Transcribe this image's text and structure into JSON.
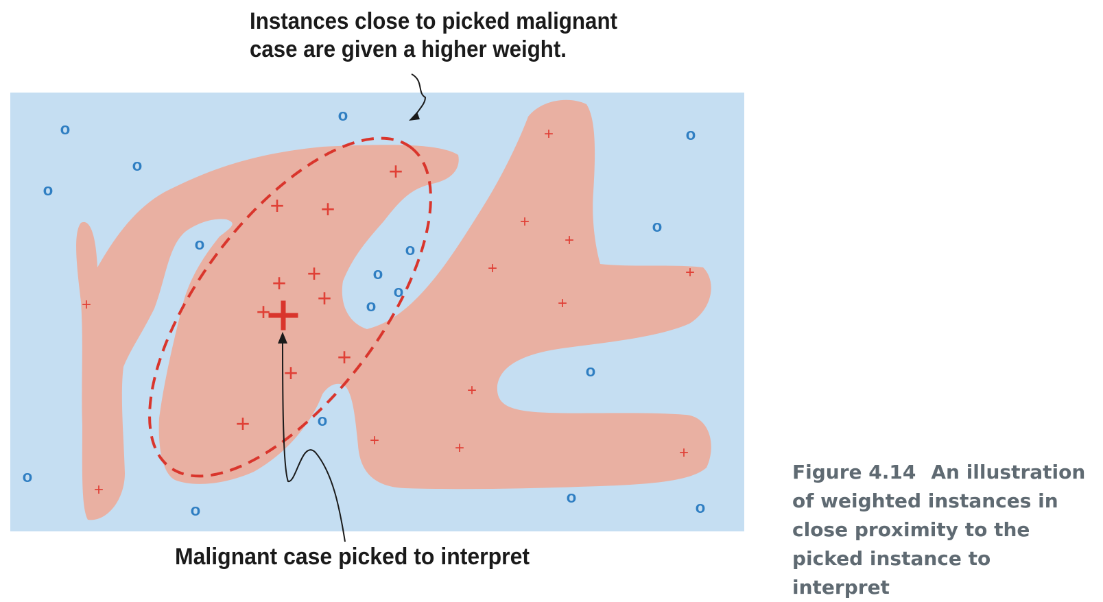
{
  "annotations": {
    "top_line1": "Instances close to picked malignant",
    "top_line2": "case are given a higher weight.",
    "bottom": "Malignant case picked to interpret"
  },
  "caption": {
    "label": "Figure 4.14",
    "text": "An illustration of weighted instances in close proximity to the picked instance to interpret"
  },
  "markers": {
    "benign_symbol": "o",
    "malignant_symbol": "+"
  },
  "colors": {
    "background_region": "#c5def2",
    "malignant_region": "#e9b0a2",
    "benign_marker": "#2f7ec2",
    "malignant_marker": "#e04036",
    "ellipse": "#d9352c",
    "caption_text": "#5f6a72"
  }
}
